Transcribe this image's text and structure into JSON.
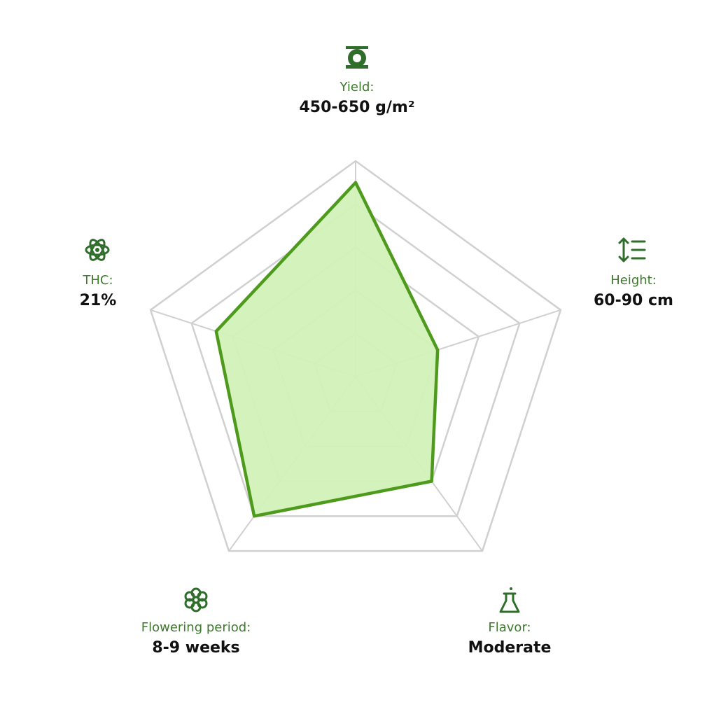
{
  "chart_data": {
    "type": "radar",
    "categories": [
      "Yield:",
      "Height:",
      "Flavor:",
      "Flowering period:",
      "THC:"
    ],
    "details": [
      "450-650 g/m²",
      "60-90 cm",
      "Moderate",
      "8-9 weeks",
      "21%"
    ],
    "values": [
      4.5,
      2.0,
      3.0,
      4.0,
      3.4
    ],
    "ylim": [
      0,
      5
    ],
    "yticks": [
      1,
      2,
      3,
      4,
      5
    ],
    "color": "#4e9a1c",
    "fill": "#d2f2b8"
  }
}
